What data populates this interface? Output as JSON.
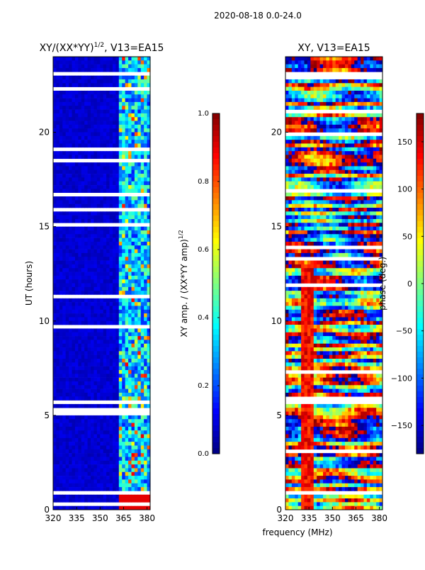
{
  "suptitle": "2020-08-18 0.0-24.0",
  "chart_data": [
    {
      "type": "heatmap",
      "title_prefix": "XY/(XX*YY)",
      "title_exp": "1/2",
      "title_suffix": ", V13=EA15",
      "xlabel": "",
      "ylabel": "UT (hours)",
      "xlim": [
        320,
        382
      ],
      "ylim": [
        0,
        24
      ],
      "xticks": [
        "320",
        "335",
        "350",
        "365",
        "380"
      ],
      "xtick_values": [
        320,
        335,
        350,
        365,
        380
      ],
      "yticks": [
        "0",
        "5",
        "10",
        "15",
        "20"
      ],
      "ytick_values": [
        0,
        5,
        10,
        15,
        20
      ],
      "colormap": "jet",
      "colorbar": {
        "label_prefix": "XY amp. / (XX*YY amp)",
        "label_exp": "1/2",
        "range": [
          0.0,
          1.0
        ],
        "ticks": [
          "0.0",
          "0.2",
          "0.4",
          "0.6",
          "0.8",
          "1.0"
        ],
        "tick_values": [
          0.0,
          0.2,
          0.4,
          0.6,
          0.8,
          1.0
        ]
      },
      "gaps_hours": [
        [
          23.0,
          23.2
        ],
        [
          5.6,
          5.8
        ],
        [
          0.8,
          0.95
        ],
        [
          14.6,
          14.7
        ],
        [
          9.75,
          9.82
        ]
      ]
    },
    {
      "type": "heatmap",
      "title": "XY, V13=EA15",
      "xlabel": "frequency (MHz)",
      "ylabel": "",
      "xlim": [
        320,
        382
      ],
      "ylim": [
        0,
        24
      ],
      "xticks": [
        "320",
        "335",
        "350",
        "365",
        "380"
      ],
      "xtick_values": [
        320,
        335,
        350,
        365,
        380
      ],
      "yticks": [
        "0",
        "5",
        "10",
        "15",
        "20"
      ],
      "ytick_values": [
        0,
        5,
        10,
        15,
        20
      ],
      "colormap": "jet",
      "colorbar": {
        "label": "phase (deg.)",
        "range": [
          -180,
          180
        ],
        "ticks": [
          "150",
          "100",
          "50",
          "0",
          "−50",
          "−100",
          "−150"
        ],
        "tick_values": [
          150,
          100,
          50,
          0,
          -50,
          -100,
          -150
        ]
      },
      "gaps_hours": [
        [
          23.0,
          23.2
        ],
        [
          5.6,
          5.8
        ],
        [
          0.8,
          0.95
        ],
        [
          14.6,
          14.7
        ],
        [
          9.75,
          9.82
        ]
      ]
    }
  ]
}
